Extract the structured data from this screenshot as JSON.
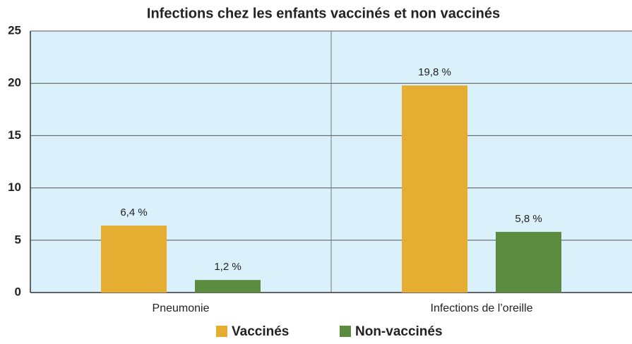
{
  "chart_data": {
    "type": "bar",
    "title": "Infections chez les enfants vaccinés et non vaccinés",
    "categories": [
      "Pneumonie",
      "Infections de l’oreille"
    ],
    "series": [
      {
        "name": "Vaccinés",
        "color": "#e5ae32",
        "values": [
          6.4,
          19.8
        ],
        "value_labels": [
          "6,4 %",
          "19,8 %"
        ]
      },
      {
        "name": "Non-vaccinés",
        "color": "#5b8b3e",
        "values": [
          1.2,
          5.8
        ],
        "value_labels": [
          "1,2 %",
          "5,8 %"
        ]
      }
    ],
    "ylim": [
      0,
      25
    ],
    "yticks": [
      0,
      5,
      10,
      15,
      20,
      25
    ],
    "grid": true,
    "legend": "bottom"
  }
}
